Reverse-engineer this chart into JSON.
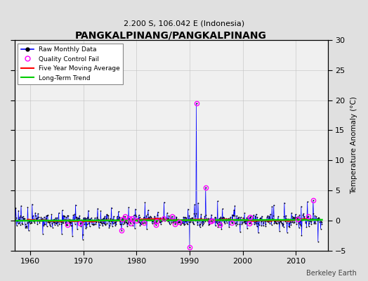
{
  "title": "PANGKALPINANG/PANGKALPINANG",
  "subtitle": "2.200 S, 106.042 E (Indonesia)",
  "ylabel": "Temperature Anomaly (°C)",
  "credit": "Berkeley Earth",
  "xlim": [
    1957,
    2016
  ],
  "ylim": [
    -5,
    30
  ],
  "yticks": [
    -5,
    0,
    5,
    10,
    15,
    20,
    25,
    30
  ],
  "xticks": [
    1960,
    1970,
    1980,
    1990,
    2000,
    2010
  ],
  "raw_color": "#0000ff",
  "ma_color": "#ff0000",
  "trend_color": "#00cc00",
  "qc_color": "#ff00ff",
  "plot_bg_color": "#f0f0f0",
  "fig_bg_color": "#e0e0e0",
  "spike1_year": 1991.25,
  "spike1_val": 19.5,
  "spike2_year": 1993.0,
  "spike2_val": 5.5,
  "spike3_year": 1990.0,
  "spike3_val": -4.5,
  "noise_std": 0.55,
  "seed": 12
}
